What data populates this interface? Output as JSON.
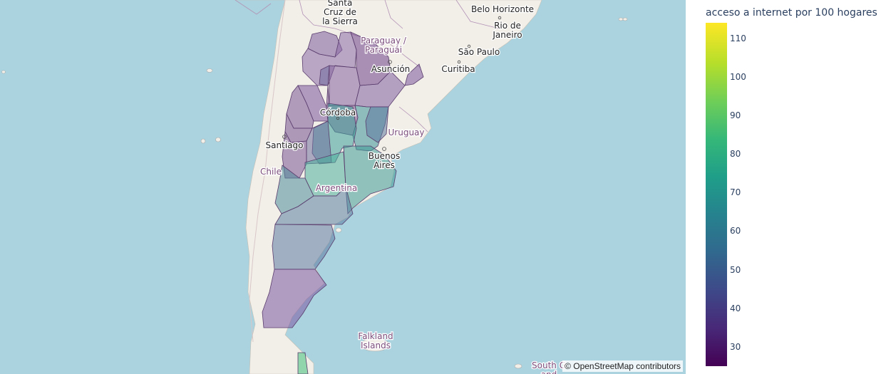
{
  "map": {
    "attribution": "© OpenStreetMap contributors",
    "colors": {
      "ocean": "#aad3df",
      "land": "#f2efe9",
      "border": "#a07aa0"
    },
    "places": [
      {
        "id": "santa-cruz",
        "lines": [
          "Santa",
          "Cruz de",
          "la Sierra"
        ]
      },
      {
        "id": "belo-horizonte",
        "lines": [
          "Belo Horizonte"
        ]
      },
      {
        "id": "rio-de-janeiro",
        "lines": [
          "Rio de",
          "Janeiro"
        ]
      },
      {
        "id": "paraguay",
        "lines": [
          "Paraguay /",
          "Paraguái"
        ]
      },
      {
        "id": "sao-paulo",
        "lines": [
          "São Paulo"
        ]
      },
      {
        "id": "asuncion",
        "lines": [
          "Asunción"
        ]
      },
      {
        "id": "curitiba",
        "lines": [
          "Curitiba"
        ]
      },
      {
        "id": "cordoba",
        "lines": [
          "Córdoba"
        ]
      },
      {
        "id": "uruguay",
        "lines": [
          "Uruguay"
        ]
      },
      {
        "id": "santiago",
        "lines": [
          "Santiago"
        ]
      },
      {
        "id": "buenos-aires",
        "lines": [
          "Buenos",
          "Aires"
        ]
      },
      {
        "id": "chile",
        "lines": [
          "Chile"
        ]
      },
      {
        "id": "argentina",
        "lines": [
          "Argentina"
        ]
      },
      {
        "id": "falkland",
        "lines": [
          "Falkland",
          "Islands"
        ]
      },
      {
        "id": "south-georgia",
        "lines": [
          "South G",
          "and"
        ]
      }
    ]
  },
  "colorbar": {
    "title": "acceso a internet por 100 hogares",
    "min": 25,
    "max": 114,
    "ticks": [
      30,
      40,
      50,
      60,
      70,
      80,
      90,
      100,
      110
    ]
  },
  "regions": [
    {
      "name": "jujuy",
      "value": 40,
      "color": "#7b5a9a"
    },
    {
      "name": "salta",
      "value": 42,
      "color": "#8a6aa6"
    },
    {
      "name": "formosa",
      "value": 36,
      "color": "#6e3f86"
    },
    {
      "name": "misiones",
      "value": 40,
      "color": "#7a559a"
    },
    {
      "name": "chaco",
      "value": 42,
      "color": "#85639f"
    },
    {
      "name": "santiago-del-estero",
      "value": 38,
      "color": "#7d558f"
    },
    {
      "name": "tucuman",
      "value": 45,
      "color": "#6f6a9e"
    },
    {
      "name": "catamarca",
      "value": 40,
      "color": "#7a569a"
    },
    {
      "name": "la-rioja",
      "value": 40,
      "color": "#7a5696"
    },
    {
      "name": "san-juan",
      "value": 38,
      "color": "#76508f"
    },
    {
      "name": "mendoza",
      "value": 40,
      "color": "#7a5696"
    },
    {
      "name": "san-luis",
      "value": 45,
      "color": "#6f709e"
    },
    {
      "name": "cordoba",
      "value": 62,
      "color": "#3a9e98"
    },
    {
      "name": "santa-fe",
      "value": 60,
      "color": "#3d8f98"
    },
    {
      "name": "entre-rios",
      "value": 50,
      "color": "#5e7aa0"
    },
    {
      "name": "corrientes",
      "value": 42,
      "color": "#7f5fa0"
    },
    {
      "name": "buenos-aires",
      "value": 62,
      "color": "#3f9a95"
    },
    {
      "name": "la-pampa",
      "value": 66,
      "color": "#4caf9d"
    },
    {
      "name": "neuquen",
      "value": 53,
      "color": "#4f8d9a"
    },
    {
      "name": "rio-negro",
      "value": 50,
      "color": "#5a7fa0"
    },
    {
      "name": "chubut",
      "value": 49,
      "color": "#5d7aa0"
    },
    {
      "name": "santa-cruz",
      "value": 40,
      "color": "#7c58a0"
    },
    {
      "name": "tierra-del-fuego",
      "value": 70,
      "color": "#3fbf7a"
    }
  ]
}
